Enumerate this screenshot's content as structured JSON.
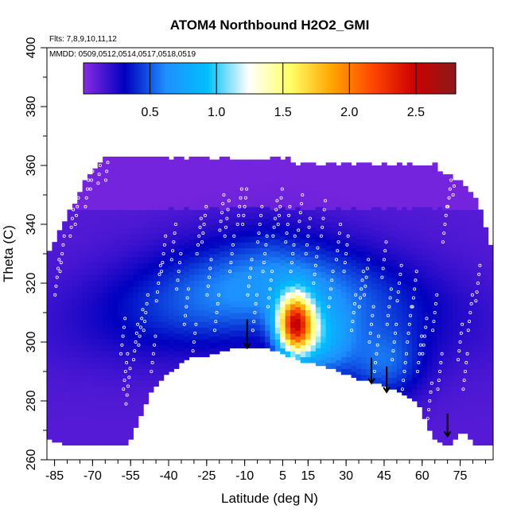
{
  "chart_data": {
    "type": "heatmap",
    "title": "ATOM4 Northbound H2O2_GMI",
    "flights_note": "Flts: 7,8,9,10,11,12",
    "dates_note": "MMDD: 0509,0512,0514,0517,0518,0519",
    "xlabel": "Latitude (deg N)",
    "ylabel": "Theta (C)",
    "xlim": [
      -88,
      88
    ],
    "ylim": [
      260,
      400
    ],
    "x_ticks": [
      -85,
      -70,
      -55,
      -40,
      -25,
      -10,
      5,
      15,
      30,
      45,
      60,
      75
    ],
    "y_ticks": [
      260,
      280,
      300,
      320,
      340,
      360,
      380,
      400
    ],
    "colorbar": {
      "range": [
        0,
        2.8
      ],
      "ticks": [
        0.5,
        1.0,
        1.5,
        2.0,
        2.5
      ],
      "tick_labels": [
        "0.5",
        "1.0",
        "1.5",
        "2.0",
        "2.5"
      ],
      "colors": [
        "#8a2be2",
        "#0000c0",
        "#1e90ff",
        "#00bfff",
        "#ffffff",
        "#ffff66",
        "#ffa500",
        "#ff4500",
        "#cc0000",
        "#8b1a1a"
      ]
    },
    "field": {
      "description_source": "visual estimate of model curtain",
      "lat_grid": [
        -88,
        -80,
        -72,
        -64,
        -56,
        -48,
        -40,
        -32,
        -24,
        -16,
        -8,
        0,
        6,
        10,
        14,
        18,
        22,
        28,
        34,
        40,
        46,
        52,
        58,
        64,
        70,
        76,
        82,
        88
      ],
      "upper_boundary_theta": [
        328,
        342,
        355,
        362,
        362,
        362,
        362,
        362,
        362,
        362,
        362,
        362,
        362,
        360,
        360,
        360,
        360,
        360,
        360,
        360,
        360,
        360,
        360,
        360,
        356,
        354,
        346,
        330
      ],
      "lower_boundary_theta": [
        268,
        265,
        265,
        265,
        265,
        282,
        290,
        295,
        296,
        298,
        299,
        298,
        296,
        295,
        293,
        293,
        292,
        290,
        288,
        287,
        285,
        283,
        280,
        268,
        265,
        270,
        265,
        265
      ],
      "peak": {
        "lat": 10,
        "theta": 306,
        "value": 2.4
      }
    },
    "flight_track_points": [
      {
        "lat": -84,
        "theta": 322
      },
      {
        "lat": -82,
        "theta": 330
      },
      {
        "lat": -78,
        "theta": 342
      },
      {
        "lat": -76,
        "theta": 346
      },
      {
        "lat": -72,
        "theta": 352
      },
      {
        "lat": -70,
        "theta": 358
      },
      {
        "lat": -67,
        "theta": 360
      },
      {
        "lat": -64,
        "theta": 361
      },
      {
        "lat": -58,
        "theta": 302
      },
      {
        "lat": -57,
        "theta": 290
      },
      {
        "lat": -56,
        "theta": 285
      },
      {
        "lat": -53,
        "theta": 300
      },
      {
        "lat": -51,
        "theta": 305
      },
      {
        "lat": -49,
        "theta": 310
      },
      {
        "lat": -46,
        "theta": 296
      },
      {
        "lat": -44,
        "theta": 320
      },
      {
        "lat": -42,
        "theta": 330
      },
      {
        "lat": -38,
        "theta": 334
      },
      {
        "lat": -36,
        "theta": 324
      },
      {
        "lat": -33,
        "theta": 312
      },
      {
        "lat": -30,
        "theta": 300
      },
      {
        "lat": -28,
        "theta": 336
      },
      {
        "lat": -26,
        "theta": 340
      },
      {
        "lat": -24,
        "theta": 322
      },
      {
        "lat": -21,
        "theta": 310
      },
      {
        "lat": -19,
        "theta": 344
      },
      {
        "lat": -17,
        "theta": 342
      },
      {
        "lat": -15,
        "theta": 330
      },
      {
        "lat": -12,
        "theta": 346
      },
      {
        "lat": -10,
        "theta": 346
      },
      {
        "lat": -8,
        "theta": 322
      },
      {
        "lat": -6,
        "theta": 310
      },
      {
        "lat": -4,
        "theta": 340
      },
      {
        "lat": -2,
        "theta": 330
      },
      {
        "lat": 0,
        "theta": 318
      },
      {
        "lat": 2,
        "theta": 342
      },
      {
        "lat": 4,
        "theta": 346
      },
      {
        "lat": 7,
        "theta": 340
      },
      {
        "lat": 9,
        "theta": 330
      },
      {
        "lat": 12,
        "theta": 344
      },
      {
        "lat": 15,
        "theta": 336
      },
      {
        "lat": 18,
        "theta": 326
      },
      {
        "lat": 21,
        "theta": 342
      },
      {
        "lat": 24,
        "theta": 318
      },
      {
        "lat": 27,
        "theta": 334
      },
      {
        "lat": 30,
        "theta": 330
      },
      {
        "lat": 33,
        "theta": 310
      },
      {
        "lat": 36,
        "theta": 318
      },
      {
        "lat": 38,
        "theta": 322
      },
      {
        "lat": 40,
        "theta": 306
      },
      {
        "lat": 42,
        "theta": 296
      },
      {
        "lat": 45,
        "theta": 328
      },
      {
        "lat": 47,
        "theta": 312
      },
      {
        "lat": 49,
        "theta": 300
      },
      {
        "lat": 51,
        "theta": 320
      },
      {
        "lat": 53,
        "theta": 290
      },
      {
        "lat": 55,
        "theta": 306
      },
      {
        "lat": 57,
        "theta": 318
      },
      {
        "lat": 59,
        "theta": 296
      },
      {
        "lat": 61,
        "theta": 302
      },
      {
        "lat": 63,
        "theta": 280
      },
      {
        "lat": 65,
        "theta": 310
      },
      {
        "lat": 67,
        "theta": 290
      },
      {
        "lat": 69,
        "theta": 340
      },
      {
        "lat": 71,
        "theta": 352
      },
      {
        "lat": 73,
        "theta": 356
      },
      {
        "lat": 75,
        "theta": 300
      },
      {
        "lat": 77,
        "theta": 290
      },
      {
        "lat": 79,
        "theta": 310
      },
      {
        "lat": 82,
        "theta": 320
      }
    ],
    "arrows": [
      {
        "lat": -9,
        "theta_top": 305,
        "theta_tip": 298
      },
      {
        "lat": 40,
        "theta_top": 292,
        "theta_tip": 286
      },
      {
        "lat": 46,
        "theta_top": 289,
        "theta_tip": 283
      },
      {
        "lat": 70,
        "theta_top": 273,
        "theta_tip": 268
      }
    ]
  }
}
